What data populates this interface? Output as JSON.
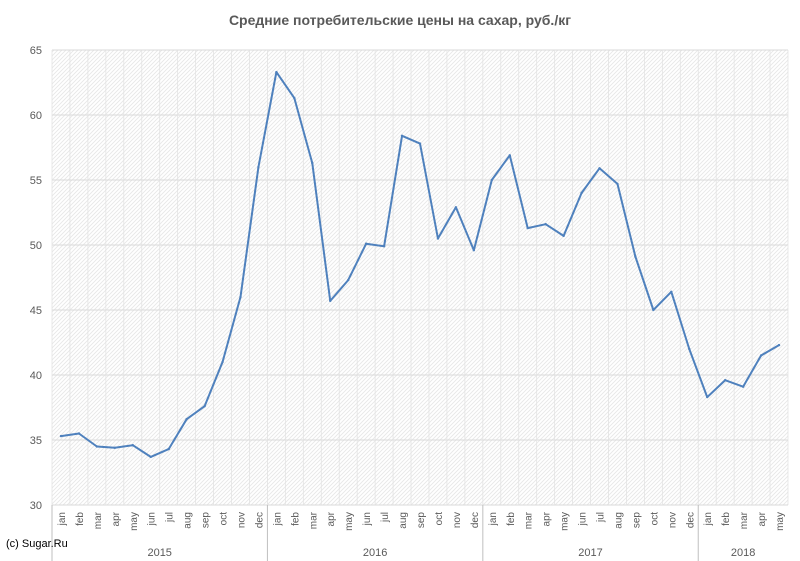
{
  "chart_data": {
    "type": "line",
    "title": "Средние потребительские цены на сахар, руб./кг",
    "xlabel": "",
    "ylabel": "",
    "ylim": [
      30,
      65
    ],
    "yticks": [
      30,
      35,
      40,
      45,
      50,
      55,
      60,
      65
    ],
    "grid": true,
    "legend": "none",
    "line_color": "#4F81BD",
    "months": [
      "jan",
      "feb",
      "mar",
      "apr",
      "may",
      "jun",
      "jul",
      "aug",
      "sep",
      "oct",
      "nov",
      "dec",
      "jan",
      "feb",
      "mar",
      "apr",
      "may",
      "jun",
      "jul",
      "aug",
      "sep",
      "oct",
      "nov",
      "dec",
      "jan",
      "feb",
      "mar",
      "apr",
      "may",
      "jun",
      "jul",
      "aug",
      "sep",
      "oct",
      "nov",
      "dec",
      "jan",
      "feb",
      "mar",
      "apr",
      "may"
    ],
    "years": [
      {
        "label": "2015",
        "months": 12
      },
      {
        "label": "2016",
        "months": 12
      },
      {
        "label": "2017",
        "months": 12
      },
      {
        "label": "2018",
        "months": 5
      }
    ],
    "series": [
      {
        "values": [
          35.3,
          35.5,
          34.5,
          34.4,
          34.6,
          33.7,
          34.3,
          36.6,
          37.6,
          41.0,
          46.0,
          56.0,
          63.3,
          61.3,
          56.3,
          45.7,
          47.3,
          50.1,
          49.9,
          58.4,
          57.8,
          50.5,
          52.9,
          49.6,
          55.0,
          56.9,
          51.3,
          51.6,
          50.7,
          54.0,
          55.9,
          54.7,
          49.1,
          45.0,
          46.4,
          42.0,
          38.3,
          39.6,
          39.1,
          41.5,
          42.3
        ]
      }
    ]
  },
  "footer": {
    "copyright": "(c) Sugar.Ru"
  }
}
